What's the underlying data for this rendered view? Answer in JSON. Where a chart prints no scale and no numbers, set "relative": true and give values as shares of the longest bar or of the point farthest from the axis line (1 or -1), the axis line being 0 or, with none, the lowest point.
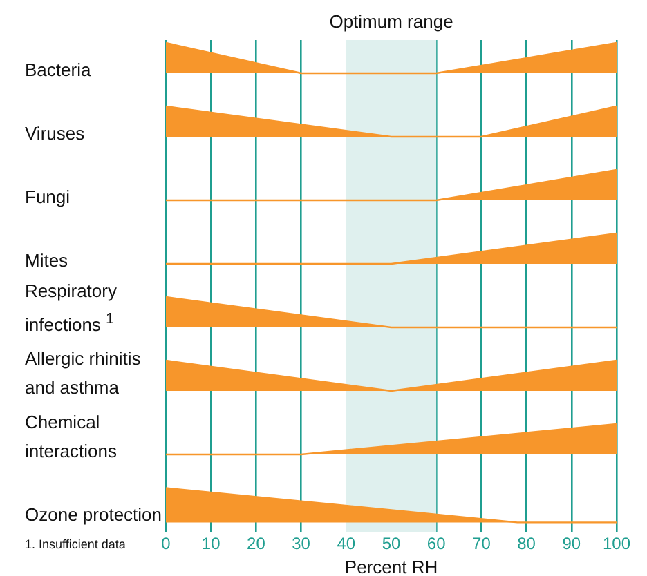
{
  "chart_data": [
    {
      "type": "area",
      "title": "Bacteria",
      "relative": true,
      "xlim": [
        0,
        100
      ],
      "xticks": [
        0,
        10,
        20,
        30,
        40,
        50,
        60,
        70,
        80,
        90,
        100
      ],
      "tick_labels": false,
      "grid": "x",
      "legend": false,
      "bands": [
        {
          "axis": "x",
          "from": 40,
          "to": 60,
          "label": "Optimum range",
          "color": "#dff0ee"
        }
      ],
      "series": [
        {
          "color": "#f7962b",
          "x": [
            0,
            30,
            60,
            100
          ],
          "values": [
            1,
            0,
            0,
            1
          ]
        }
      ]
    },
    {
      "type": "area",
      "title": "Viruses",
      "relative": true,
      "xlim": [
        0,
        100
      ],
      "xticks": [
        0,
        10,
        20,
        30,
        40,
        50,
        60,
        70,
        80,
        90,
        100
      ],
      "tick_labels": false,
      "grid": "x",
      "legend": false,
      "bands": [
        {
          "axis": "x",
          "from": 40,
          "to": 60,
          "color": "#dff0ee"
        }
      ],
      "series": [
        {
          "color": "#f7962b",
          "x": [
            0,
            50,
            70,
            100
          ],
          "values": [
            1,
            0,
            0,
            1
          ]
        }
      ]
    },
    {
      "type": "area",
      "title": "Fungi",
      "relative": true,
      "xlim": [
        0,
        100
      ],
      "xticks": [
        0,
        10,
        20,
        30,
        40,
        50,
        60,
        70,
        80,
        90,
        100
      ],
      "tick_labels": false,
      "grid": "x",
      "legend": false,
      "bands": [
        {
          "axis": "x",
          "from": 40,
          "to": 60,
          "color": "#dff0ee"
        }
      ],
      "series": [
        {
          "color": "#f7962b",
          "x": [
            0,
            60,
            100
          ],
          "values": [
            0,
            0,
            1
          ]
        }
      ]
    },
    {
      "type": "area",
      "title": "Mites",
      "relative": true,
      "xlim": [
        0,
        100
      ],
      "xticks": [
        0,
        10,
        20,
        30,
        40,
        50,
        60,
        70,
        80,
        90,
        100
      ],
      "tick_labels": false,
      "grid": "x",
      "legend": false,
      "bands": [
        {
          "axis": "x",
          "from": 40,
          "to": 60,
          "color": "#dff0ee"
        }
      ],
      "series": [
        {
          "color": "#f7962b",
          "x": [
            0,
            50,
            100
          ],
          "values": [
            0,
            0,
            1
          ]
        }
      ]
    },
    {
      "type": "area",
      "title": "Respiratory infections $^{1}$",
      "relative": true,
      "xlim": [
        0,
        100
      ],
      "xticks": [
        0,
        10,
        20,
        30,
        40,
        50,
        60,
        70,
        80,
        90,
        100
      ],
      "tick_labels": false,
      "grid": "x",
      "legend": false,
      "bands": [
        {
          "axis": "x",
          "from": 40,
          "to": 60,
          "color": "#dff0ee"
        }
      ],
      "series": [
        {
          "color": "#f7962b",
          "x": [
            0,
            50,
            100
          ],
          "values": [
            1,
            0,
            0
          ]
        }
      ]
    },
    {
      "type": "area",
      "title": "Allergic rhinitis and asthma",
      "relative": true,
      "xlim": [
        0,
        100
      ],
      "xticks": [
        0,
        10,
        20,
        30,
        40,
        50,
        60,
        70,
        80,
        90,
        100
      ],
      "tick_labels": false,
      "grid": "x",
      "legend": false,
      "bands": [
        {
          "axis": "x",
          "from": 40,
          "to": 60,
          "color": "#dff0ee"
        }
      ],
      "series": [
        {
          "color": "#f7962b",
          "x": [
            0,
            50,
            100
          ],
          "values": [
            1,
            0,
            1
          ]
        }
      ]
    },
    {
      "type": "area",
      "title": "Chemical interactions",
      "relative": true,
      "xlim": [
        0,
        100
      ],
      "xticks": [
        0,
        10,
        20,
        30,
        40,
        50,
        60,
        70,
        80,
        90,
        100
      ],
      "tick_labels": false,
      "grid": "x",
      "legend": false,
      "bands": [
        {
          "axis": "x",
          "from": 40,
          "to": 60,
          "color": "#dff0ee"
        }
      ],
      "series": [
        {
          "color": "#f7962b",
          "x": [
            0,
            30,
            100
          ],
          "values": [
            0,
            0,
            1
          ]
        }
      ]
    },
    {
      "type": "area",
      "title": "Ozone protection",
      "relative": true,
      "xlim": [
        0,
        100
      ],
      "xticks": [
        0,
        10,
        20,
        30,
        40,
        50,
        60,
        70,
        80,
        90,
        100
      ],
      "tick_labels": "x",
      "grid": "x",
      "legend": false,
      "bands": [
        {
          "axis": "x",
          "from": 40,
          "to": 60,
          "color": "#dff0ee"
        }
      ],
      "xlabel": "Percent RH",
      "annotations": [
        "1. Insufficient data"
      ],
      "series": [
        {
          "color": "#f7962b",
          "x": [
            0,
            78,
            100
          ],
          "values": [
            1,
            0,
            0
          ]
        }
      ]
    }
  ]
}
